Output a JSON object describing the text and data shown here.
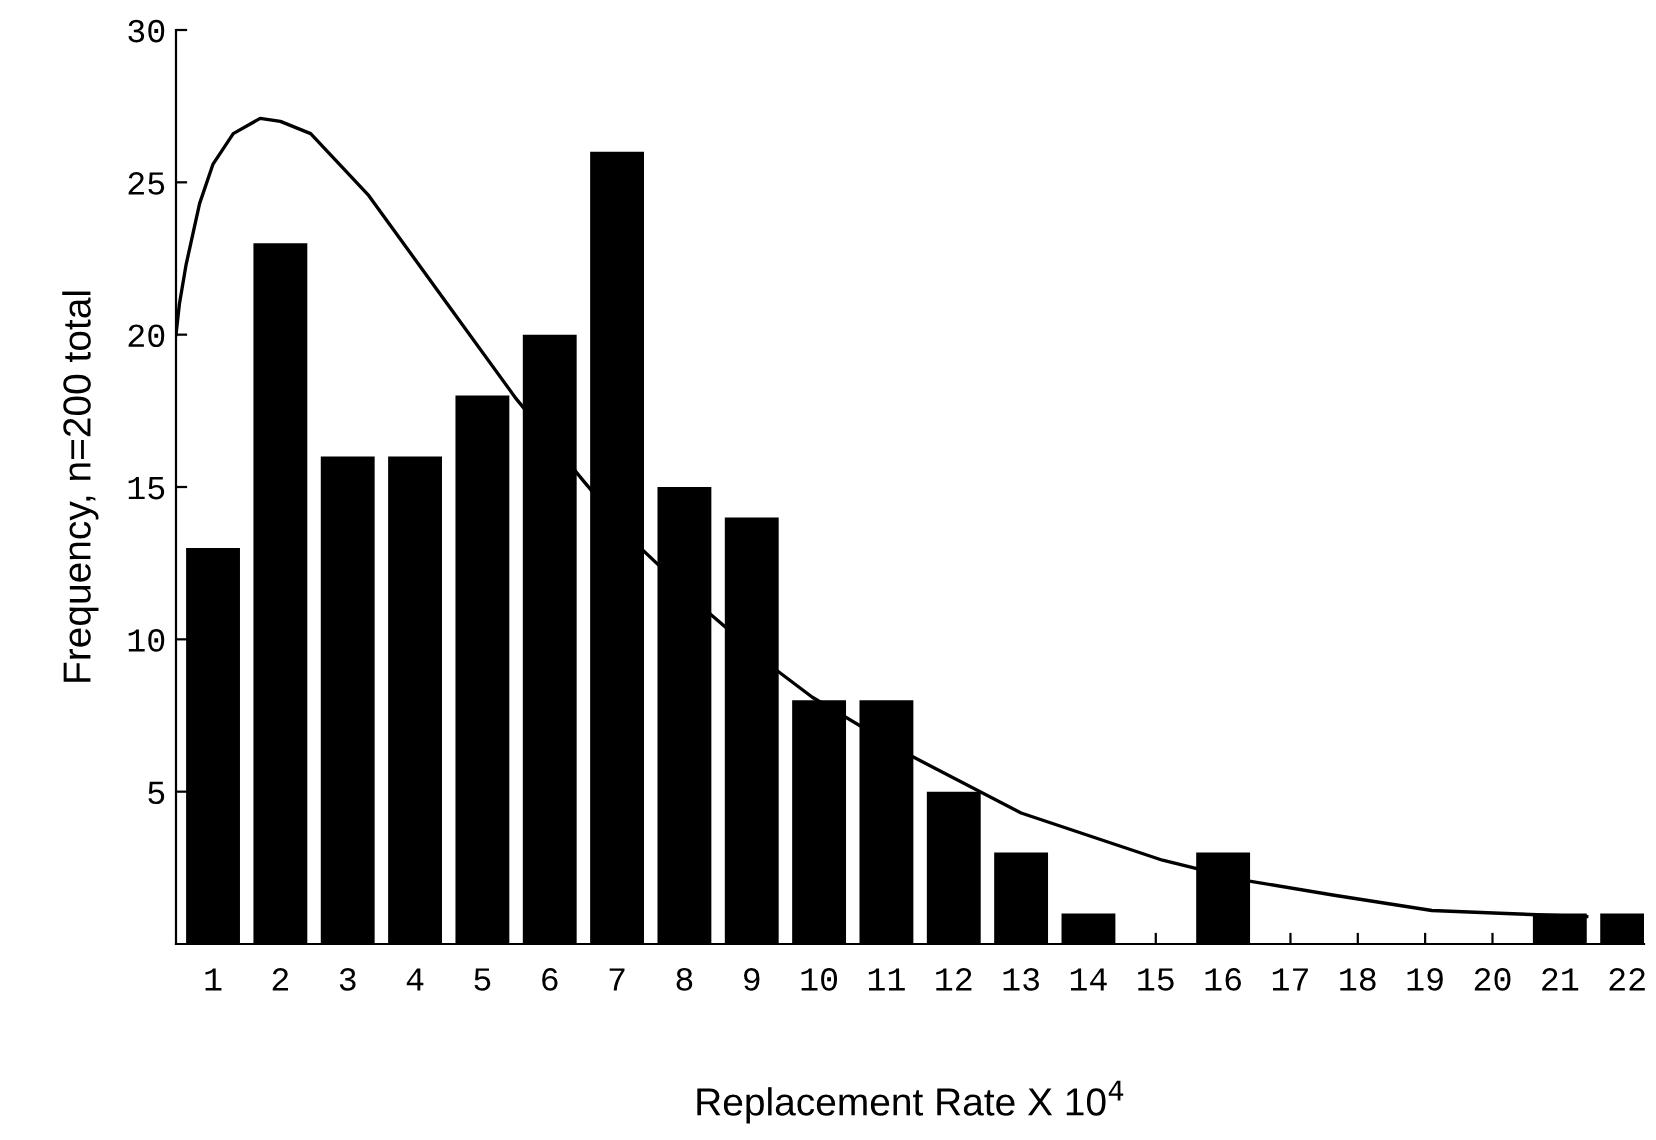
{
  "chart_data": {
    "type": "bar",
    "xlabel": "Replacement Rate X 10$^{4}$",
    "ylabel": "Frequency, n=200 total",
    "x": [
      1,
      2,
      3,
      4,
      5,
      6,
      7,
      8,
      9,
      10,
      11,
      12,
      13,
      14,
      15,
      16,
      17,
      18,
      19,
      20,
      21,
      22
    ],
    "series": [
      {
        "color": "#000000",
        "values": [
          13,
          23,
          16,
          16,
          18,
          20,
          26,
          15,
          14,
          8,
          8,
          5,
          3,
          1,
          0,
          3,
          0,
          0,
          0,
          0,
          1,
          1
        ]
      },
      {
        "type": "line",
        "color": "#000000",
        "x": [
          0.45,
          0.5,
          0.6,
          0.8,
          1.0,
          1.3,
          1.7,
          2.0,
          2.45,
          3.3,
          4.45,
          5.5,
          6.5,
          7.3,
          8.4,
          9.3,
          9.9,
          11.3,
          13.0,
          15.1,
          16.3,
          17.65,
          19.1,
          20.2,
          21.4
        ],
        "values": [
          20.0,
          21.0,
          22.3,
          24.3,
          25.6,
          26.6,
          27.1,
          27.0,
          26.6,
          24.6,
          21.1,
          17.9,
          15.2,
          13.1,
          10.8,
          9.1,
          8.1,
          6.25,
          4.3,
          2.75,
          2.1,
          1.6,
          1.1,
          1.0,
          0.9
        ]
      }
    ],
    "xlim": [
      0.45,
      22.25
    ],
    "xticks": [
      1,
      2,
      3,
      4,
      5,
      6,
      7,
      8,
      9,
      10,
      11,
      12,
      13,
      14,
      15,
      16,
      17,
      18,
      19,
      20,
      21,
      22
    ],
    "ylim": [
      0,
      30
    ],
    "yticks": [
      5,
      10,
      15,
      20,
      25,
      30
    ],
    "grid": false,
    "legend": false
  }
}
